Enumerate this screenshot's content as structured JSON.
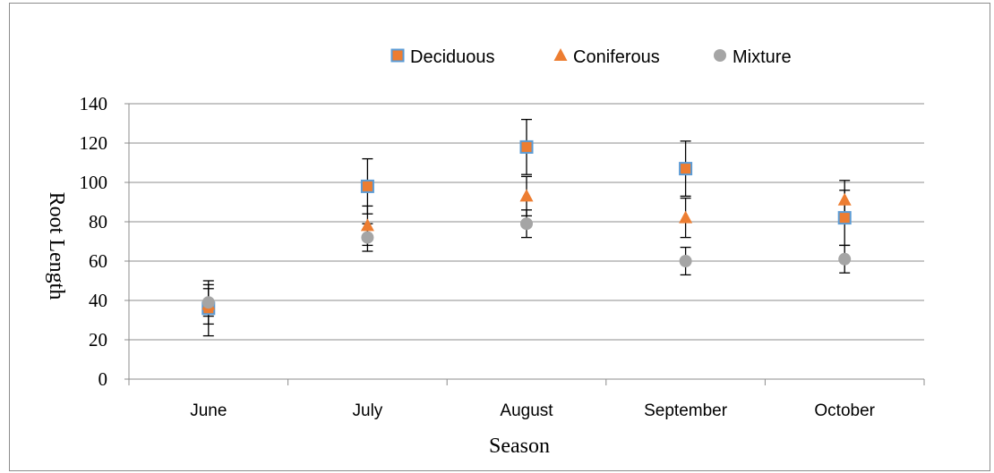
{
  "chart_data": {
    "type": "scatter",
    "title": "",
    "xlabel": "Season",
    "ylabel": "Root Length",
    "categories": [
      "June",
      "July",
      "August",
      "September",
      "October"
    ],
    "ylim": [
      0,
      140
    ],
    "yticks": [
      0,
      20,
      40,
      60,
      80,
      100,
      120,
      140
    ],
    "grid": "horizontal",
    "legend_position": "top",
    "series": [
      {
        "name": "Deciduous",
        "marker": "square",
        "color": "#ED7D31",
        "edge_color": "#5B9BD5",
        "values": [
          36,
          98,
          118,
          107,
          82
        ],
        "error": [
          14,
          14,
          14,
          14,
          14
        ]
      },
      {
        "name": "Coniferous",
        "marker": "triangle",
        "color": "#ED7D31",
        "values": [
          38,
          78,
          93,
          82,
          91
        ],
        "error": [
          10,
          10,
          10,
          10,
          10
        ]
      },
      {
        "name": "Mixture",
        "marker": "circle",
        "color": "#A5A5A5",
        "values": [
          39,
          72,
          79,
          60,
          61
        ],
        "error": [
          7,
          7,
          7,
          7,
          7
        ]
      }
    ]
  }
}
